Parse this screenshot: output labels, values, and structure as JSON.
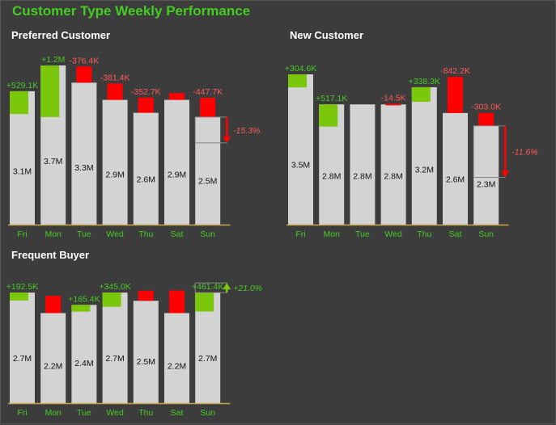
{
  "dashboard": {
    "title": "Customer Type Weekly Performance"
  },
  "colors": {
    "background": "#3c3c3c",
    "bar": "#d3d3d3",
    "increase": "#7ac70c",
    "decrease": "#ff0000",
    "axis": "#c8a84a",
    "label_green": "#44cc22",
    "label_red": "#ff5a5a",
    "title_green": "#44cc22"
  },
  "panels": [
    {
      "title": "Preferred Customer",
      "variance_label": "-15.3%",
      "variance_direction": "down",
      "chart_data": {
        "type": "bar",
        "categories": [
          "Fri",
          "Mon",
          "Tue",
          "Wed",
          "Thu",
          "Sat",
          "Sun"
        ],
        "values": [
          3.1,
          3.7,
          3.3,
          2.9,
          2.6,
          2.9,
          2.5
        ],
        "value_labels": [
          "3.1M",
          "3.7M",
          "3.3M",
          "2.9M",
          "2.6M",
          "2.9M",
          "2.5M"
        ],
        "changes": [
          0.529,
          1.2,
          -0.376,
          -0.381,
          -0.353,
          -0.158,
          -0.448
        ],
        "change_labels": [
          "+529.1K",
          "+1.2M",
          "-376.4K",
          "-381.4K",
          "-352.7K",
          "",
          "-447.7K"
        ],
        "ylim": [
          0,
          3.7
        ]
      }
    },
    {
      "title": "New Customer",
      "variance_label": "-11.6%",
      "variance_direction": "down",
      "chart_data": {
        "type": "bar",
        "categories": [
          "Fri",
          "Mon",
          "Tue",
          "Wed",
          "Thu",
          "Sat",
          "Sun"
        ],
        "values": [
          3.5,
          2.8,
          2.8,
          2.8,
          3.2,
          2.6,
          2.3
        ],
        "value_labels": [
          "3.5M",
          "2.8M",
          "2.8M",
          "2.8M",
          "3.2M",
          "2.6M",
          "2.3M"
        ],
        "changes": [
          0.305,
          0.517,
          0.0,
          -0.015,
          0.338,
          -0.842,
          -0.303
        ],
        "change_labels": [
          "+304.6K",
          "+517.1K",
          "",
          "-14.5K",
          "+338.3K",
          "-842.2K",
          "-303.0K"
        ],
        "ylim": [
          0,
          3.5
        ]
      }
    },
    {
      "title": "Frequent Buyer",
      "variance_label": "+21.0%",
      "variance_direction": "up",
      "chart_data": {
        "type": "bar",
        "categories": [
          "Fri",
          "Mon",
          "Tue",
          "Wed",
          "Thu",
          "Sat",
          "Sun"
        ],
        "values": [
          2.7,
          2.2,
          2.4,
          2.7,
          2.5,
          2.2,
          2.7
        ],
        "value_labels": [
          "2.7M",
          "2.2M",
          "2.4M",
          "2.7M",
          "2.5M",
          "2.2M",
          "2.7M"
        ],
        "changes": [
          0.193,
          -0.42,
          0.165,
          0.345,
          -0.245,
          -0.55,
          0.461
        ],
        "change_labels": [
          "+192.5K",
          "",
          "+165.4K",
          "+345.0K",
          "",
          "",
          "+461.4K"
        ],
        "ylim": [
          0,
          2.9
        ]
      }
    }
  ]
}
